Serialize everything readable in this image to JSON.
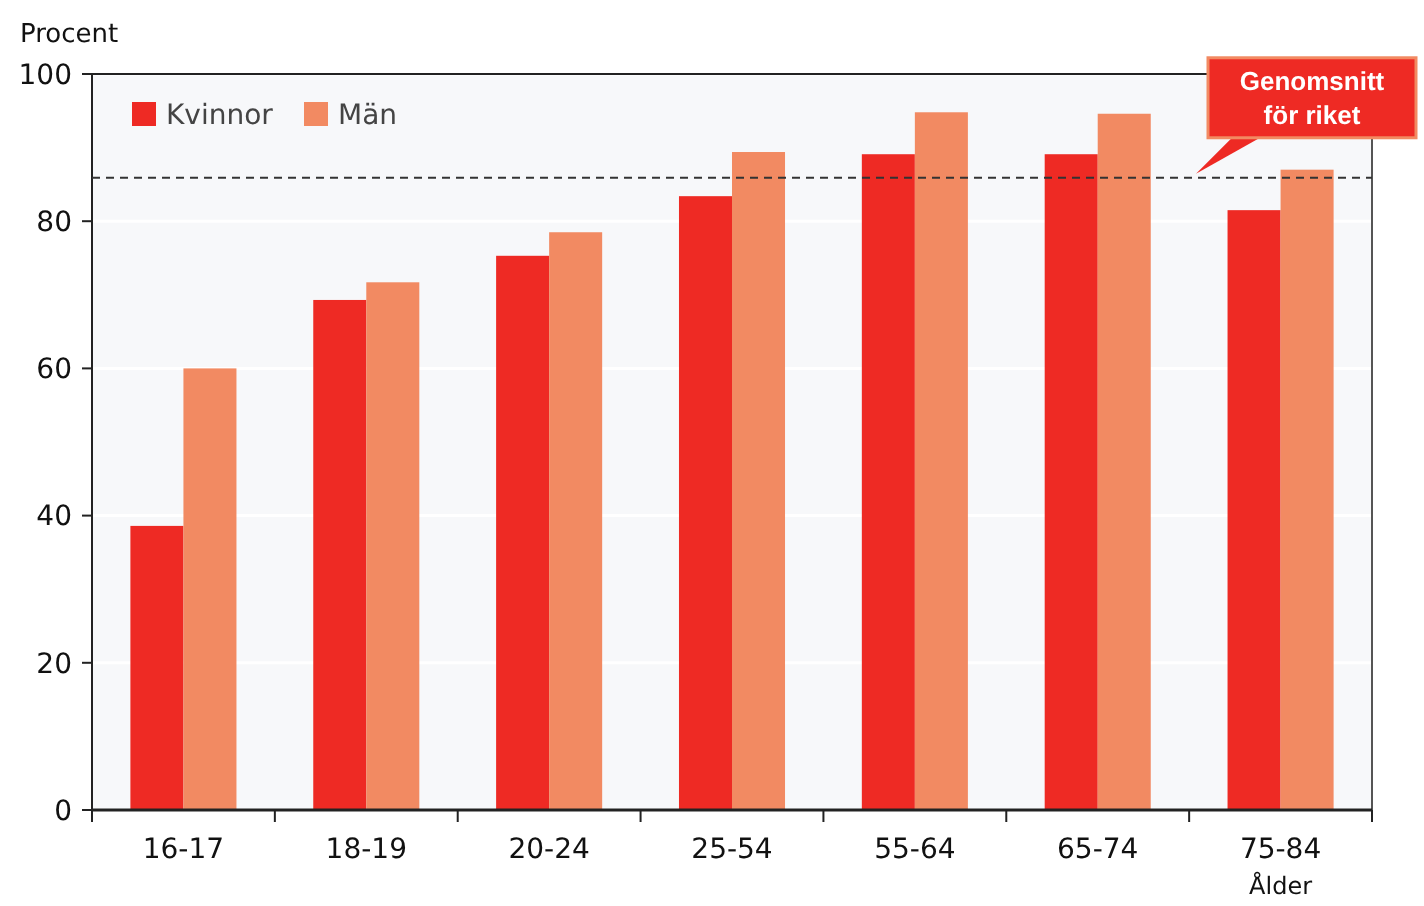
{
  "chart_data": {
    "type": "bar",
    "ylabel": "Procent",
    "xlabel": "Ålder",
    "categories": [
      "16-17",
      "18-19",
      "20-24",
      "25-54",
      "55-64",
      "65-74",
      "75-84"
    ],
    "series": [
      {
        "name": "Kvinnor",
        "color": "#ee2a24",
        "values": [
          38.6,
          69.3,
          75.3,
          83.4,
          89.1,
          89.1,
          81.5
        ]
      },
      {
        "name": "Män",
        "color": "#f28a62",
        "values": [
          60,
          71.7,
          78.5,
          89.4,
          94.8,
          94.6,
          87
        ]
      }
    ],
    "ylim": [
      0,
      100
    ],
    "yticks": [
      0,
      20,
      40,
      60,
      80,
      100
    ],
    "grid": "y",
    "legend": "top left",
    "ref_lines": [
      {
        "axis": "y",
        "value": 85.9,
        "label": "Genomsnitt för riket",
        "color": "#333333",
        "line_style": "dashed"
      }
    ]
  }
}
